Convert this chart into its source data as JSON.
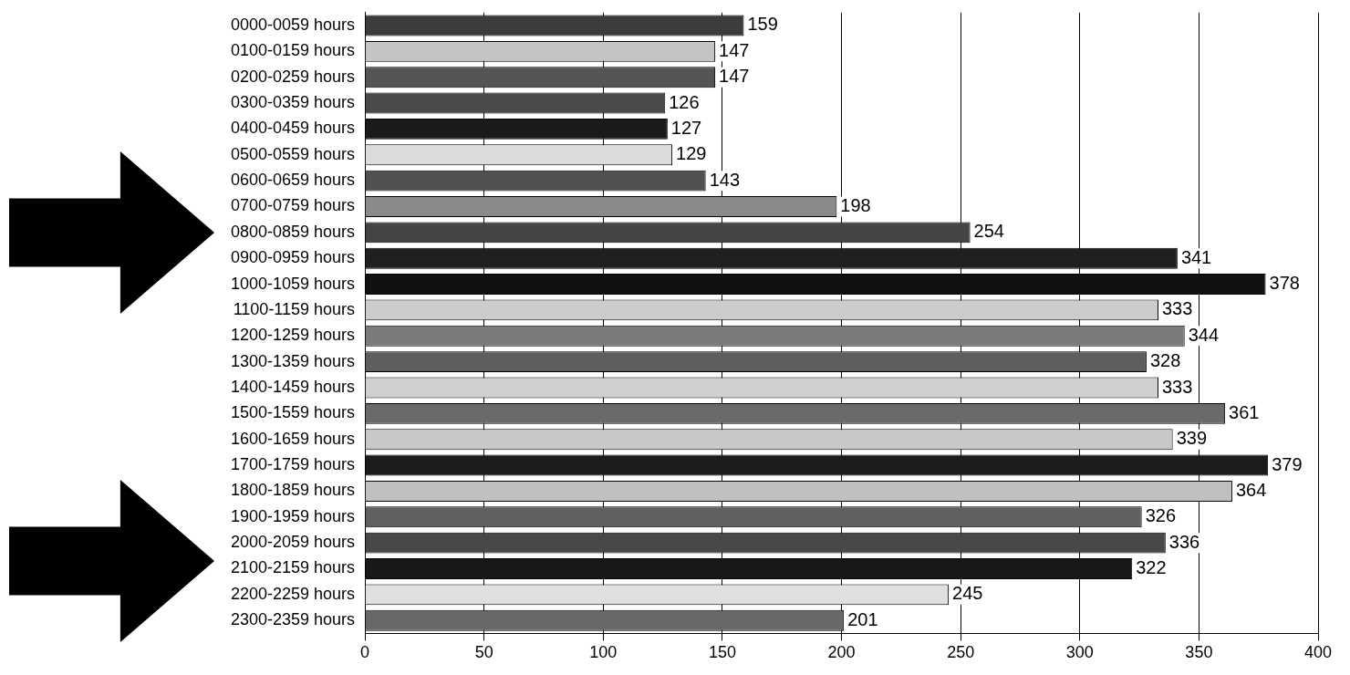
{
  "chart_data": {
    "type": "bar",
    "orientation": "horizontal",
    "categories": [
      "0000-0059 hours",
      "0100-0159 hours",
      "0200-0259 hours",
      "0300-0359 hours",
      "0400-0459 hours",
      "0500-0559 hours",
      "0600-0659 hours",
      "0700-0759 hours",
      "0800-0859 hours",
      "0900-0959 hours",
      "1000-1059 hours",
      "1100-1159 hours",
      "1200-1259 hours",
      "1300-1359 hours",
      "1400-1459 hours",
      "1500-1559 hours",
      "1600-1659 hours",
      "1700-1759 hours",
      "1800-1859 hours",
      "1900-1959 hours",
      "2000-2059 hours",
      "2100-2159 hours",
      "2200-2259 hours",
      "2300-2359 hours"
    ],
    "values": [
      159,
      147,
      147,
      126,
      127,
      129,
      143,
      198,
      254,
      341,
      378,
      333,
      344,
      328,
      333,
      361,
      339,
      379,
      364,
      326,
      336,
      322,
      245,
      201
    ],
    "colors": [
      "#3c3c3c",
      "#c4c4c4",
      "#555555",
      "#4a4a4a",
      "#1a1a1a",
      "#dcdcdc",
      "#505050",
      "#8a8a8a",
      "#444444",
      "#202020",
      "#111111",
      "#cccccc",
      "#7a7a7a",
      "#5e5e5e",
      "#d0d0d0",
      "#6a6a6a",
      "#c8c8c8",
      "#1c1c1c",
      "#c0c0c0",
      "#606060",
      "#484848",
      "#181818",
      "#e0e0e0",
      "#686868"
    ],
    "xlim": [
      0,
      400
    ],
    "xticks": [
      0,
      50,
      100,
      150,
      200,
      250,
      300,
      350,
      400
    ],
    "grid": "x",
    "data_labels": true,
    "legend": false
  }
}
